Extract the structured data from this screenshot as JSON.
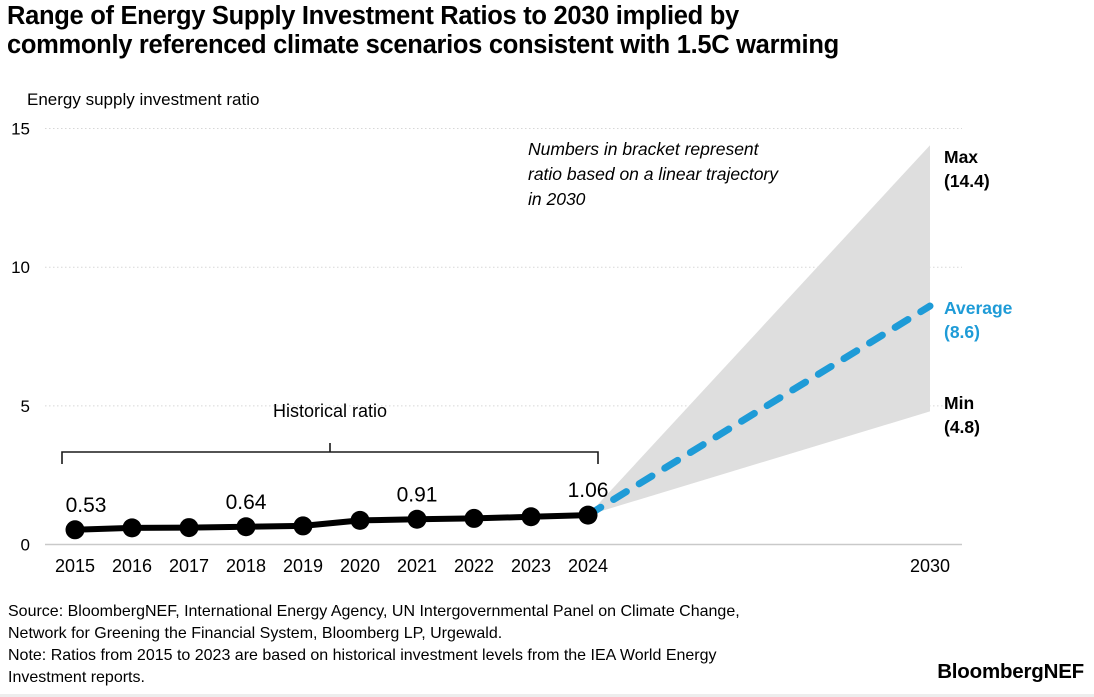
{
  "title": {
    "line1": "Range of Energy Supply Investment Ratios to 2030 implied by",
    "line2": "commonly referenced climate scenarios consistent with 1.5C warming"
  },
  "axis_title": "Energy supply investment ratio",
  "annotation": {
    "line1": "Numbers in bracket represent",
    "line2": "ratio based on a linear trajectory",
    "line3": "in 2030"
  },
  "bracket_label": "Historical ratio",
  "range_labels": {
    "max": {
      "name": "Max",
      "value": "(14.4)"
    },
    "average": {
      "name": "Average",
      "value": "(8.6)"
    },
    "min": {
      "name": "Min",
      "value": "(4.8)"
    }
  },
  "footer": {
    "source_line1": "Source: BloombergNEF, International Energy Agency, UN Intergovernmental Panel on Climate Change,",
    "source_line2": "Network for Greening the Financial System, Bloomberg LP, Urgewald.",
    "note_line1": "Note: Ratios from 2015 to 2023 are based on historical investment levels from the IEA World Energy",
    "note_line2": "Investment reports.",
    "logo": "BloombergNEF"
  },
  "colors": {
    "accent_blue": "#1E9BD7",
    "wedge_gray": "#DEDEDE",
    "line_black": "#000000"
  },
  "chart_data": {
    "type": "line",
    "title": "Range of Energy Supply Investment Ratios to 2030 implied by commonly referenced climate scenarios consistent with 1.5C warming",
    "ylabel": "Energy supply investment ratio",
    "ylim": [
      0,
      15
    ],
    "yticks": [
      0,
      5,
      10,
      15
    ],
    "grid": "horizontal-dotted",
    "x": [
      2015,
      2016,
      2017,
      2018,
      2019,
      2020,
      2021,
      2022,
      2023,
      2024
    ],
    "x_axis_extra": 2030,
    "series": [
      {
        "name": "Historical ratio",
        "x": [
          2015,
          2016,
          2017,
          2018,
          2019,
          2020,
          2021,
          2022,
          2023,
          2024
        ],
        "values": [
          0.53,
          0.6,
          0.61,
          0.64,
          0.67,
          0.87,
          0.91,
          0.94,
          1.0,
          1.06
        ],
        "style": "solid-black-with-dots"
      },
      {
        "name": "Average projection",
        "x": [
          2024,
          2030
        ],
        "values": [
          1.06,
          8.6
        ],
        "style": "dashed-blue"
      }
    ],
    "projection_2030": {
      "max": 14.4,
      "average": 8.6,
      "min": 4.8
    },
    "projection_range_style": "gray-wedge-from-2024-to-2030",
    "point_labels": [
      {
        "x": 2015,
        "value": 0.53,
        "label": "0.53"
      },
      {
        "x": 2018,
        "value": 0.64,
        "label": "0.64"
      },
      {
        "x": 2021,
        "value": 0.91,
        "label": "0.91"
      },
      {
        "x": 2024,
        "value": 1.06,
        "label": "1.06"
      }
    ],
    "legend_position": "right-edge-annotations"
  }
}
